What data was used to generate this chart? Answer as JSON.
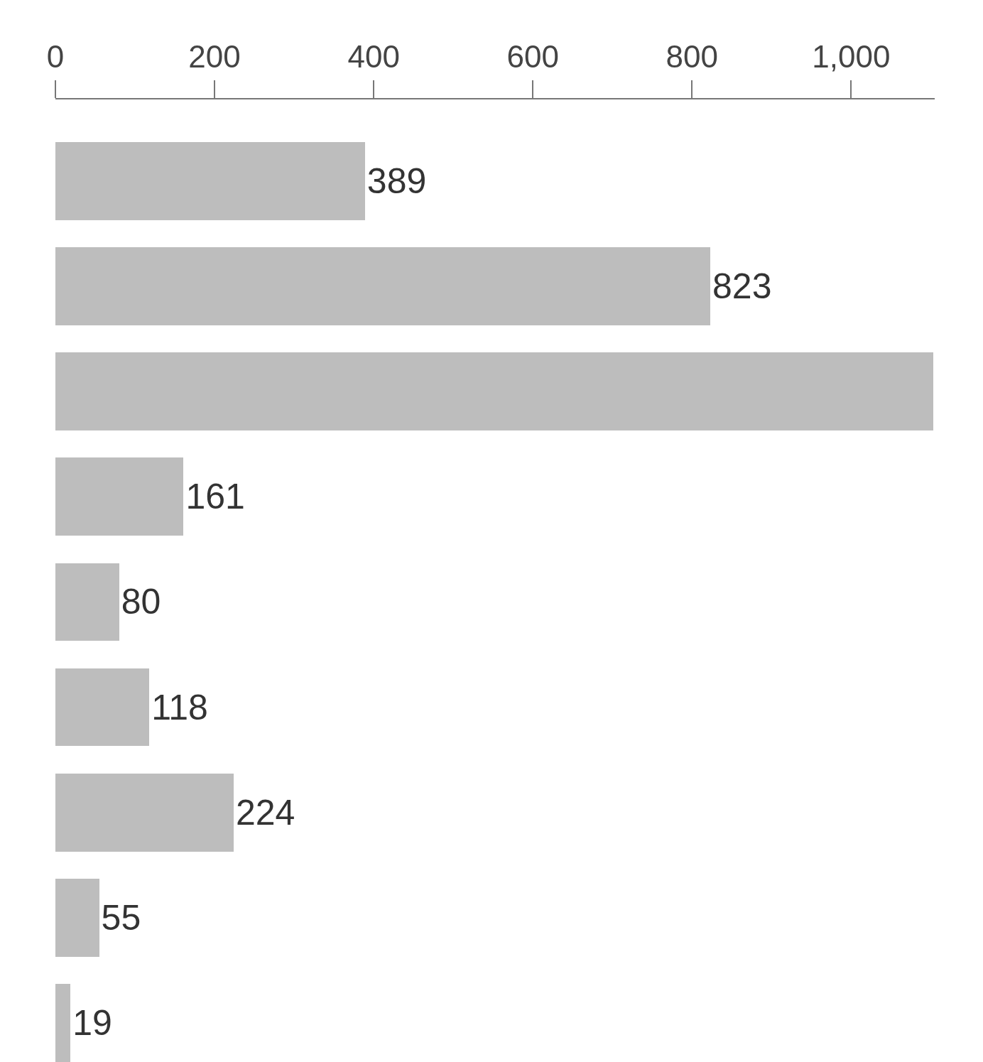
{
  "chart_data": {
    "type": "bar",
    "orientation": "horizontal",
    "categories": [
      null,
      null,
      null,
      null,
      null,
      null,
      null,
      null,
      null
    ],
    "series": [
      {
        "color": "#bdbdbd",
        "values": [
          389,
          823,
          1103,
          161,
          80,
          118,
          224,
          55,
          19
        ],
        "value_labels": [
          "389",
          "823",
          null,
          "161",
          "80",
          "118",
          "224",
          "55",
          "19"
        ]
      }
    ],
    "xlim": [
      0,
      1105
    ],
    "xticks": [
      0,
      200,
      400,
      600,
      800,
      {
        "value": 1000,
        "label": "1,000"
      }
    ]
  }
}
